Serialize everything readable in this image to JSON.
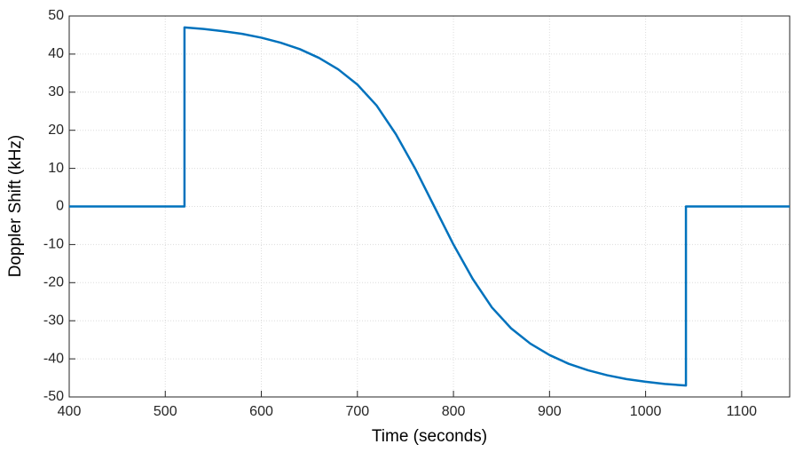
{
  "chart_data": {
    "type": "line",
    "xlabel": "Time (seconds)",
    "ylabel": "Doppler Shift (kHz)",
    "series": [
      {
        "name": "Doppler",
        "color": "#0072bd",
        "x": [
          400,
          520,
          520,
          540,
          560,
          580,
          600,
          620,
          640,
          660,
          680,
          700,
          720,
          740,
          760,
          780,
          800,
          820,
          840,
          860,
          880,
          900,
          920,
          940,
          960,
          980,
          1000,
          1020,
          1042,
          1042,
          1150
        ],
        "values": [
          0,
          0,
          47,
          46.6,
          46,
          45.3,
          44.3,
          43,
          41.3,
          39,
          36,
          32,
          26.5,
          19,
          10,
          0,
          -10,
          -19,
          -26.5,
          -32,
          -36,
          -39,
          -41.3,
          -43,
          -44.3,
          -45.3,
          -46,
          -46.6,
          -47,
          0,
          0
        ]
      }
    ],
    "xlim": [
      400,
      1150
    ],
    "xticks": [
      400,
      500,
      600,
      700,
      800,
      900,
      1000,
      1100
    ],
    "ylim": [
      -50,
      50
    ],
    "yticks": [
      -50,
      -40,
      -30,
      -20,
      -10,
      0,
      10,
      20,
      30,
      40,
      50
    ],
    "grid": true
  }
}
